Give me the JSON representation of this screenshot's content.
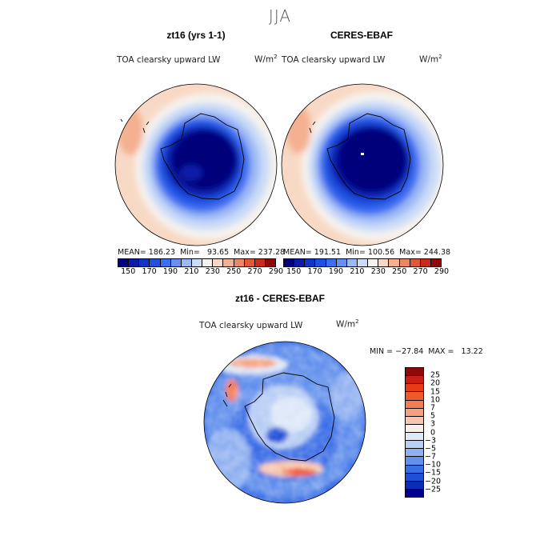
{
  "season": "JJA",
  "panels": {
    "model": {
      "title": "zt16 (yrs 1-1)",
      "field_label": "TOA clearsky upward LW",
      "units_base": "W/m",
      "units_exp": "2",
      "stats": "MEAN= 186.23  Min=   93.65  Max= 237.28"
    },
    "obs": {
      "title": "CERES-EBAF",
      "field_label": "TOA clearsky upward LW",
      "units_base": "W/m",
      "units_exp": "2",
      "stats": "MEAN= 191.51  Min= 100.56  Max= 244.38"
    },
    "diff": {
      "title": "zt16 - CERES-EBAF",
      "field_label": "TOA clearsky upward LW",
      "units_base": "W/m",
      "units_exp": "2",
      "stats": "MIN = −27.84  MAX =   13.22"
    }
  },
  "colorbar_top": {
    "ticks": [
      "150",
      "170",
      "190",
      "210",
      "230",
      "250",
      "270",
      "290"
    ],
    "colors": [
      "#00007a",
      "#0a1ca8",
      "#1034c8",
      "#1f50e0",
      "#3d6ef0",
      "#6890f2",
      "#9cb8f5",
      "#cadcf8",
      "#f6f3ee",
      "#f8d7c4",
      "#f4b091",
      "#ee8563",
      "#e0573a",
      "#c82a1e",
      "#8e0a0a"
    ]
  },
  "colorbar_diff": {
    "ticks": [
      "25",
      "20",
      "15",
      "10",
      "7",
      "5",
      "3",
      "0",
      "−3",
      "−5",
      "−7",
      "−10",
      "−15",
      "−20",
      "−25"
    ],
    "colors": [
      "#8e0a0a",
      "#c81e14",
      "#e63a18",
      "#f05a2a",
      "#f47c52",
      "#f7a07c",
      "#f9c6ac",
      "#fbeee4",
      "#dde8f8",
      "#b8cef5",
      "#8fb0f1",
      "#6290ec",
      "#3a6ee6",
      "#1d4fd8",
      "#0b2db6",
      "#00008a"
    ]
  }
}
